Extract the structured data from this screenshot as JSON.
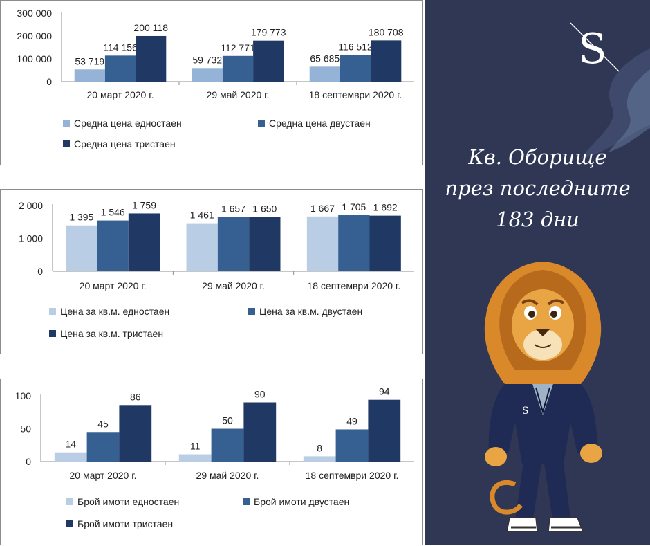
{
  "chart_data": [
    {
      "type": "bar",
      "categories": [
        "20 март 2020 г.",
        "29 май 2020 г.",
        "18 септември 2020 г."
      ],
      "series": [
        {
          "name": "Средна цена едностаен",
          "color": "#95b3d7",
          "values": [
            53719,
            59732,
            65685
          ],
          "labels": [
            "53 719",
            "59 732",
            "65 685"
          ]
        },
        {
          "name": "Средна цена двустаен",
          "color": "#376092",
          "values": [
            114156,
            112771,
            116512
          ],
          "labels": [
            "114 156",
            "112 771",
            "116 512"
          ]
        },
        {
          "name": "Средна цена тристаен",
          "color": "#1f3864",
          "values": [
            200118,
            179773,
            180708
          ],
          "labels": [
            "200 118",
            "179 773",
            "180 708"
          ]
        }
      ],
      "yticks": [
        "0",
        "100 000",
        "200 000",
        "300 000"
      ],
      "ylim": [
        0,
        300000
      ],
      "legend_position": "bottom"
    },
    {
      "type": "bar",
      "categories": [
        "20 март 2020 г.",
        "29 май 2020 г.",
        "18 септември 2020 г."
      ],
      "series": [
        {
          "name": "Цена за кв.м. едностаен",
          "color": "#b9cde5",
          "values": [
            1395,
            1461,
            1667
          ],
          "labels": [
            "1 395",
            "1 461",
            "1 667"
          ]
        },
        {
          "name": "Цена за кв.м. двустаен",
          "color": "#376092",
          "values": [
            1546,
            1657,
            1705
          ],
          "labels": [
            "1 546",
            "1 657",
            "1 705"
          ]
        },
        {
          "name": "Цена за кв.м. тристаен",
          "color": "#203864",
          "values": [
            1759,
            1650,
            1692
          ],
          "labels": [
            "1 759",
            "1 650",
            "1 692"
          ]
        }
      ],
      "yticks": [
        "0",
        "1 000",
        "2 000"
      ],
      "ylim": [
        0,
        2000
      ],
      "legend_position": "bottom"
    },
    {
      "type": "bar",
      "categories": [
        "20 март 2020 г.",
        "29 май 2020 г.",
        "18 септември 2020 г."
      ],
      "series": [
        {
          "name": "Брой имоти едностаен",
          "color": "#b9cde5",
          "values": [
            14,
            11,
            8
          ],
          "labels": [
            "14",
            "11",
            "8"
          ]
        },
        {
          "name": "Брой имоти двустаен",
          "color": "#376092",
          "values": [
            45,
            50,
            49
          ],
          "labels": [
            "45",
            "50",
            "49"
          ]
        },
        {
          "name": "Брой имоти тристаен",
          "color": "#203864",
          "values": [
            86,
            90,
            94
          ],
          "labels": [
            "86",
            "90",
            "94"
          ]
        }
      ],
      "yticks": [
        "0",
        "50",
        "100"
      ],
      "ylim": [
        0,
        100
      ],
      "legend_position": "bottom"
    }
  ],
  "sidebar": {
    "headline": [
      "Кв. Оборище",
      "през последните",
      "183 дни"
    ],
    "background": "#2f3754",
    "logo_letter": "S",
    "badge_letter": "S",
    "mascot": "lion-mascot-in-suit"
  }
}
